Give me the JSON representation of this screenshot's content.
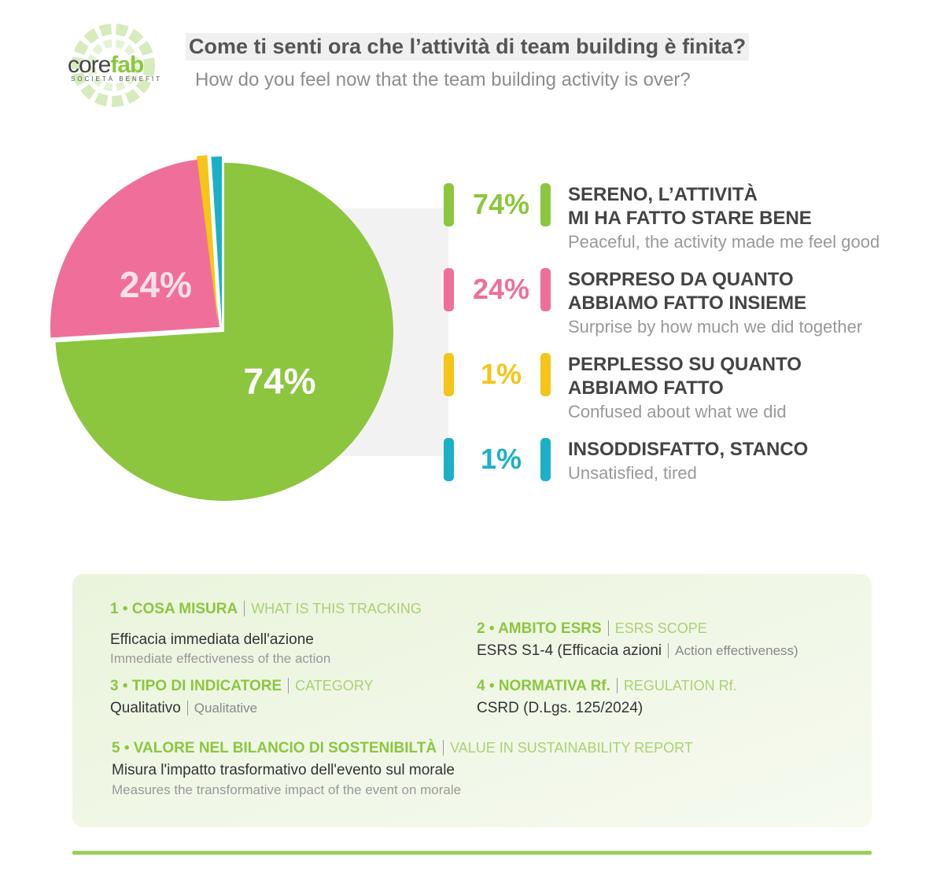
{
  "logo": {
    "name_part1": "core",
    "name_part2": "fab",
    "tagline": "SOCIETÀ BENEFIT"
  },
  "chart_data": {
    "type": "pie",
    "title": "Come ti senti ora che l’attività di team building è finita?",
    "subtitle": "How do you feel now that the team building activity is over?",
    "categories": [
      "SERENO, L’ATTIVITÀ\nMI HA FATTO STARE BENE",
      "SORPRESO DA QUANTO\nABBIAMO FATTO INSIEME",
      "PERPLESSO SU QUANTO\nABBIAMO FATTO",
      "INSODDISFATTO, STANCO"
    ],
    "category_translations": [
      "Peaceful, the activity made me feel good",
      "Surprise by how much we did together",
      "Confused about what we did",
      "Unsatisfied, tired"
    ],
    "values": [
      74,
      24,
      1,
      1
    ],
    "value_labels": [
      "74%",
      "24%",
      "1%",
      "1%"
    ],
    "colors": [
      "#8cc63f",
      "#ef6f9a",
      "#f5c518",
      "#1cb0c8"
    ]
  },
  "info": {
    "items": [
      {
        "title": "1 • COSA MISURA",
        "title_en": "WHAT IS THIS TRACKING",
        "value": "Efficacia immediata dell'azione",
        "value_en": "Immediate effectiveness of the action"
      },
      {
        "title": "2 • AMBITO ESRS",
        "title_en": "ESRS SCOPE",
        "value": "ESRS S1-4 (Efficacia azioni",
        "value_en": "Action effectiveness)"
      },
      {
        "title": "3 • TIPO DI INDICATORE",
        "title_en": "CATEGORY",
        "value": "Qualitativo",
        "value_en": "Qualitative"
      },
      {
        "title": "4 • NORMATIVA Rf.",
        "title_en": "REGULATION Rf.",
        "value": "CSRD (D.Lgs. 125/2024)"
      },
      {
        "title": "5 • VALORE NEL BILANCIO DI SOSTENIBILTÀ",
        "title_en": "VALUE IN SUSTAINABILITY REPORT",
        "value": "Misura l'impatto trasformativo dell'evento sul morale",
        "value_en": "Measures the transformative impact of the event on morale"
      }
    ]
  }
}
